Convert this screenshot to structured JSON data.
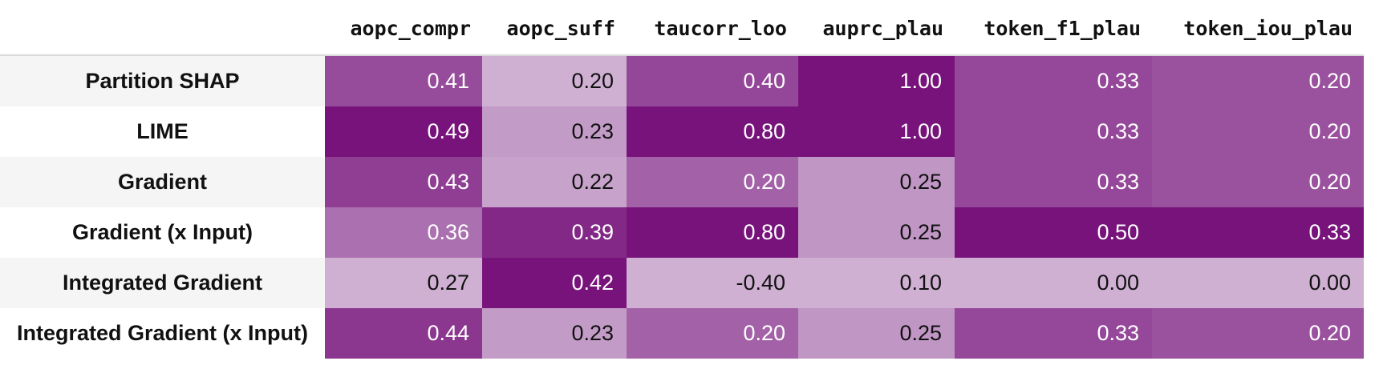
{
  "chart_data": {
    "type": "heatmap",
    "columns": [
      "aopc_compr",
      "aopc_suff",
      "taucorr_loo",
      "auprc_plau",
      "token_f1_plau",
      "token_iou_plau"
    ],
    "rows": [
      {
        "label": "Partition SHAP",
        "values": [
          "0.41",
          "0.20",
          "0.40",
          "1.00",
          "0.33",
          "0.20"
        ]
      },
      {
        "label": "LIME",
        "values": [
          "0.49",
          "0.23",
          "0.80",
          "1.00",
          "0.33",
          "0.20"
        ]
      },
      {
        "label": "Gradient",
        "values": [
          "0.43",
          "0.22",
          "0.20",
          "0.25",
          "0.33",
          "0.20"
        ]
      },
      {
        "label": "Gradient (x Input)",
        "values": [
          "0.36",
          "0.39",
          "0.80",
          "0.25",
          "0.50",
          "0.33"
        ]
      },
      {
        "label": "Integrated Gradient",
        "values": [
          "0.27",
          "0.42",
          "-0.40",
          "0.10",
          "0.00",
          "0.00"
        ]
      },
      {
        "label": "Integrated Gradient (x Input)",
        "values": [
          "0.44",
          "0.23",
          "0.20",
          "0.25",
          "0.33",
          "0.20"
        ]
      }
    ],
    "colormap": {
      "light": "#cfb0d3",
      "dark": "#77137b",
      "dark_text": "#ffffff",
      "light_text": "#111111",
      "label_band": "#f5f5f5"
    }
  }
}
